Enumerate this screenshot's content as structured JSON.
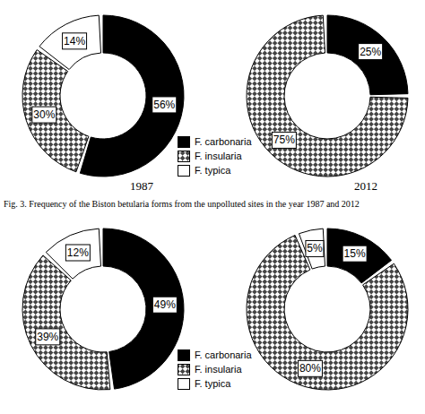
{
  "chart_data": [
    {
      "type": "donut",
      "title": "1987",
      "categories": [
        "F. carbonaria",
        "F. insularia",
        "F. typica"
      ],
      "values": [
        56,
        30,
        14
      ],
      "value_labels": [
        "56%",
        "30%",
        "14%"
      ],
      "colors": [
        "#000000",
        "#444444",
        "#ffffff"
      ],
      "data_labels": true,
      "legend": "right"
    },
    {
      "type": "donut",
      "title": "2012",
      "categories": [
        "F. carbonaria",
        "F. insularia"
      ],
      "values": [
        25,
        75
      ],
      "value_labels": [
        "25%",
        "75%"
      ],
      "colors": [
        "#000000",
        "#444444"
      ],
      "data_labels": true
    },
    {
      "type": "donut",
      "categories": [
        "F. carbonaria",
        "F. insularia",
        "F. typica"
      ],
      "values": [
        49,
        39,
        12
      ],
      "value_labels": [
        "49%",
        "39%",
        "12%"
      ],
      "colors": [
        "#000000",
        "#444444",
        "#ffffff"
      ],
      "data_labels": true,
      "legend": "right"
    },
    {
      "type": "donut",
      "categories": [
        "F. carbonaria",
        "F. insularia",
        "F. typica"
      ],
      "values": [
        15,
        80,
        5
      ],
      "value_labels": [
        "15%",
        "80%",
        "5%"
      ],
      "colors": [
        "#000000",
        "#444444",
        "#ffffff"
      ],
      "data_labels": true
    }
  ],
  "caption": "Fig. 3. Frequency of the Biston betularia forms from the unpolluted sites in the year 1987 and 2012"
}
